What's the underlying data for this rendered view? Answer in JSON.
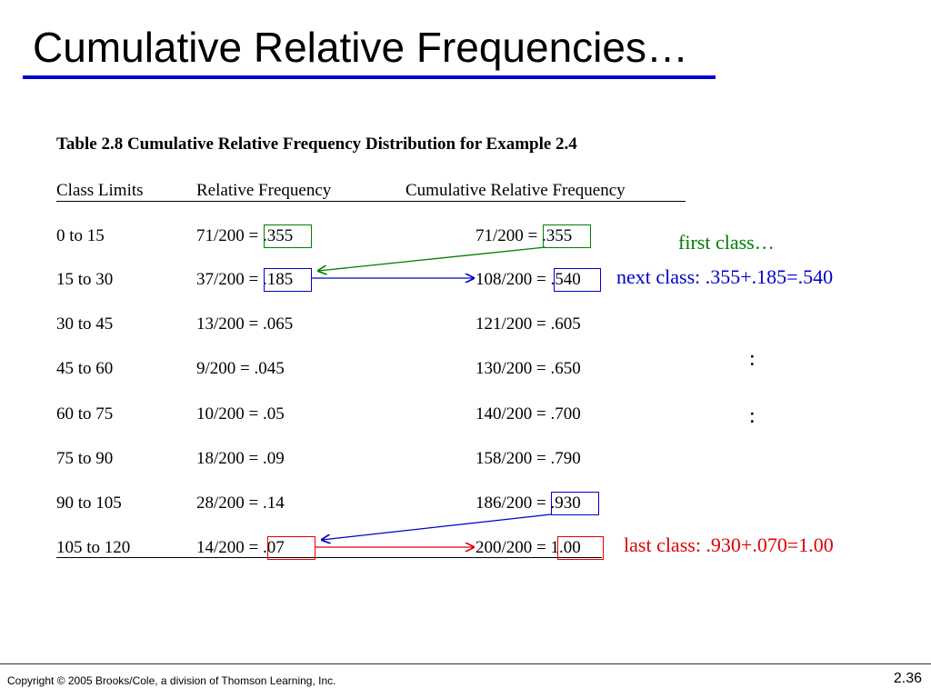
{
  "slide": {
    "title": "Cumulative Relative Frequencies…",
    "accent_color": "#0000cc"
  },
  "table": {
    "caption": "Table 2.8 Cumulative Relative Frequency Distribution for Example 2.4",
    "headers": [
      "Class Limits",
      "Relative Frequency",
      "Cumulative Relative Frequency"
    ],
    "rows": [
      [
        "0 to 15",
        "71/200 = .355",
        "71/200 = .355"
      ],
      [
        "15 to 30",
        "37/200 = .185",
        "108/200 = .540"
      ],
      [
        "30 to 45",
        "13/200 = .065",
        "121/200 = .605"
      ],
      [
        "45 to 60",
        "9/200 = .045",
        "130/200 = .650"
      ],
      [
        "60 to 75",
        "10/200 = .05",
        "140/200 = .700"
      ],
      [
        "75 to 90",
        "18/200 = .09",
        "158/200 = .790"
      ],
      [
        "90 to 105",
        "28/200 = .14",
        "186/200 = .930"
      ],
      [
        "105 to 120",
        "14/200 = .07",
        "200/200 = 1.00"
      ]
    ]
  },
  "annotations": {
    "first": {
      "text": "first class…",
      "color": "#008000"
    },
    "next": {
      "text": "next class: .355+.185=.540",
      "color": "#0000cc"
    },
    "dots": [
      ":",
      ":"
    ],
    "last": {
      "text": "last class: .930+.070=1.00",
      "color": "#e00000"
    }
  },
  "footer": {
    "copyright": "Copyright © 2005 Brooks/Cole, a division of Thomson Learning, Inc.",
    "page_number": "2.36"
  }
}
